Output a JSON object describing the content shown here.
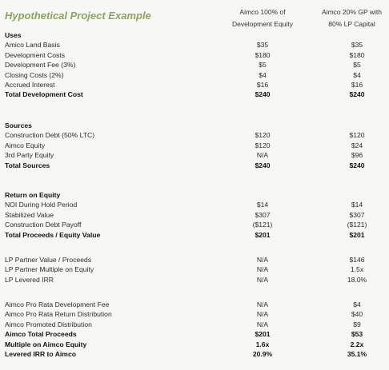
{
  "title": "Hypothetical Project Example",
  "columns": {
    "col1_line1": "Aimco 100% of",
    "col1_line2": "Development Equity",
    "col2_line1": "Aimco 20% GP with",
    "col2_line2": "80% LP Capital"
  },
  "uses": {
    "header": "Uses",
    "rows": [
      {
        "label": "Amico Land Basis",
        "v1": "$35",
        "v2": "$35"
      },
      {
        "label": "Development Costs",
        "v1": "$180",
        "v2": "$180"
      },
      {
        "label": "Development Fee (3%)",
        "v1": "$5",
        "v2": "$5"
      },
      {
        "label": "Closing Costs (2%)",
        "v1": "$4",
        "v2": "$4"
      },
      {
        "label": "Accrued Interest",
        "v1": "$16",
        "v2": "$16"
      },
      {
        "label": "Total Development Cost",
        "v1": "$240",
        "v2": "$240"
      }
    ]
  },
  "sources": {
    "header": "Sources",
    "rows": [
      {
        "label": "Construction Debt (50% LTC)",
        "v1": "$120",
        "v2": "$120"
      },
      {
        "label": "Aimco Equity",
        "v1": "$120",
        "v2": "$24"
      },
      {
        "label": "3rd Party Equity",
        "v1": "N/A",
        "v2": "$96"
      },
      {
        "label": "Total Sources",
        "v1": "$240",
        "v2": "$240"
      }
    ]
  },
  "roe": {
    "header": "Return on Equity",
    "rows": [
      {
        "label": "NOI During Hold Period",
        "v1": "$14",
        "v2": "$14"
      },
      {
        "label": "Stabilized Value",
        "v1": "$307",
        "v2": "$307"
      },
      {
        "label": "Construction Debt Payoff",
        "v1": "($121)",
        "v2": "($121)"
      },
      {
        "label": "Total Proceeds / Equity Value",
        "v1": "$201",
        "v2": "$201"
      }
    ]
  },
  "lp": {
    "rows": [
      {
        "label": "LP Partner Value / Proceeds",
        "v1": "N/A",
        "v2": "$146"
      },
      {
        "label": "LP Partner Multiple on Equity",
        "v1": "N/A",
        "v2": "1.5x"
      },
      {
        "label": "LP Levered IRR",
        "v1": "N/A",
        "v2": "18.0%"
      }
    ]
  },
  "aimco": {
    "rows": [
      {
        "label": "Aimco Pro Rata Development Fee",
        "v1": "N/A",
        "v2": "$4"
      },
      {
        "label": "Aimco Pro Rata Return Distribution",
        "v1": "N/A",
        "v2": "$40"
      },
      {
        "label": "Aimco Promoted Distribution",
        "v1": "N/A",
        "v2": "$9"
      },
      {
        "label": "Aimco Total Proceeds",
        "v1": "$201",
        "v2": "$53"
      },
      {
        "label": "Multiple on Aimco Equity",
        "v1": "1.6x",
        "v2": "2.2x"
      },
      {
        "label": "Levered IRR to Aimco",
        "v1": "20.9%",
        "v2": "35.1%"
      }
    ]
  }
}
